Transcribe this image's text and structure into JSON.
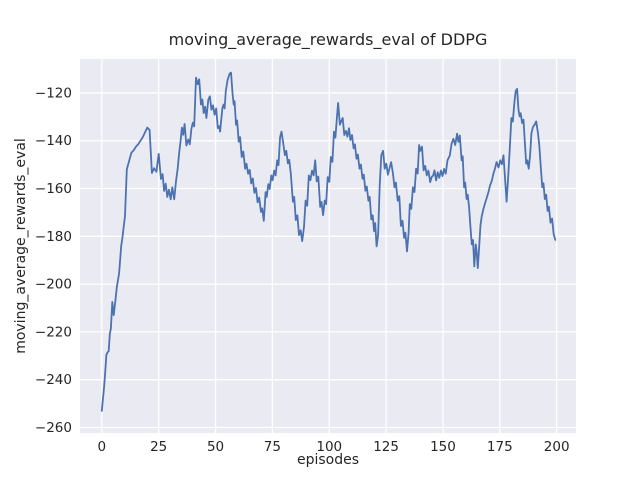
{
  "chart_data": {
    "type": "line",
    "title": "moving_average_rewards_eval of DDPG",
    "xlabel": "episodes",
    "ylabel": "moving_average_rewards_eval",
    "x_ticks": [
      0,
      25,
      50,
      75,
      100,
      125,
      150,
      175,
      200
    ],
    "y_ticks": [
      -260,
      -240,
      -220,
      -200,
      -180,
      -160,
      -140,
      -120
    ],
    "xlim": [
      -9.6,
      208.5
    ],
    "ylim": [
      -262.3,
      -105.8
    ],
    "grid": true,
    "legend": false,
    "style": "seaborn-darkgrid",
    "colors": {
      "line": "#4C72B0",
      "plot_background": "#EAEAF2",
      "gridline": "#FFFFFF",
      "text": "#262626",
      "figure_background": "#FFFFFF"
    },
    "series": [
      {
        "name": "moving_average_rewards_eval",
        "points": [
          [
            0,
            -253
          ],
          [
            1,
            -243
          ],
          [
            1.5,
            -237
          ],
          [
            2,
            -229.5
          ],
          [
            2.6,
            -228.5
          ],
          [
            3,
            -228
          ],
          [
            3.5,
            -221
          ],
          [
            4,
            -218.5
          ],
          [
            4.6,
            -207.5
          ],
          [
            5.2,
            -213
          ],
          [
            6,
            -206.5
          ],
          [
            6.6,
            -201.3
          ],
          [
            7.6,
            -195.5
          ],
          [
            8.5,
            -184
          ],
          [
            9,
            -181
          ],
          [
            9.6,
            -176
          ],
          [
            10.2,
            -171.5
          ],
          [
            11,
            -152
          ],
          [
            12,
            -148.5
          ],
          [
            13,
            -145
          ],
          [
            14,
            -144
          ],
          [
            15,
            -142.5
          ],
          [
            16,
            -141.5
          ],
          [
            17,
            -140
          ],
          [
            18,
            -138.5
          ],
          [
            19,
            -136.5
          ],
          [
            20,
            -134.5
          ],
          [
            21,
            -135.5
          ],
          [
            22,
            -153.5
          ],
          [
            23,
            -151.5
          ],
          [
            24,
            -153
          ],
          [
            25,
            -145.5
          ],
          [
            26,
            -156
          ],
          [
            26.7,
            -154
          ],
          [
            27.4,
            -161
          ],
          [
            28.1,
            -158
          ],
          [
            28.8,
            -163.5
          ],
          [
            29.5,
            -160.5
          ],
          [
            30.3,
            -164.5
          ],
          [
            31,
            -159.5
          ],
          [
            31.8,
            -164.5
          ],
          [
            32.6,
            -157
          ],
          [
            33.3,
            -152
          ],
          [
            34,
            -145
          ],
          [
            34.6,
            -140.5
          ],
          [
            35.2,
            -134.5
          ],
          [
            35.8,
            -137.5
          ],
          [
            36.4,
            -133
          ],
          [
            37.2,
            -142
          ],
          [
            38,
            -139.5
          ],
          [
            38.7,
            -141.5
          ],
          [
            39.4,
            -135
          ],
          [
            40,
            -132.5
          ],
          [
            40.6,
            -134
          ],
          [
            41.4,
            -113.6
          ],
          [
            42.1,
            -116.4
          ],
          [
            42.8,
            -114.3
          ],
          [
            43.6,
            -124.9
          ],
          [
            44.2,
            -122.8
          ],
          [
            44.8,
            -128.4
          ],
          [
            45.4,
            -125.8
          ],
          [
            46,
            -130.5
          ],
          [
            46.8,
            -122.8
          ],
          [
            47.5,
            -121.4
          ],
          [
            48.2,
            -127
          ],
          [
            48.9,
            -125.2
          ],
          [
            49.6,
            -129.1
          ],
          [
            50.3,
            -126.5
          ],
          [
            51,
            -134.7
          ],
          [
            51.5,
            -133.9
          ],
          [
            52,
            -136.2
          ],
          [
            53,
            -126.3
          ],
          [
            53.5,
            -124.9
          ],
          [
            54,
            -126.5
          ],
          [
            54.5,
            -119.2
          ],
          [
            55.3,
            -114.5
          ],
          [
            56.2,
            -112
          ],
          [
            56.8,
            -111.5
          ],
          [
            57.5,
            -120.5
          ],
          [
            58,
            -124.9
          ],
          [
            58.4,
            -123.5
          ],
          [
            59,
            -133.3
          ],
          [
            59.5,
            -131.5
          ],
          [
            60.2,
            -140.4
          ],
          [
            60.8,
            -138.5
          ],
          [
            61.5,
            -146.8
          ],
          [
            62.2,
            -144.5
          ],
          [
            63,
            -151.7
          ],
          [
            63.6,
            -149.6
          ],
          [
            64.3,
            -153.8
          ],
          [
            65,
            -152.2
          ],
          [
            65.7,
            -157.8
          ],
          [
            66.4,
            -155.8
          ],
          [
            67.1,
            -161.8
          ],
          [
            67.8,
            -159.8
          ],
          [
            68.5,
            -165.8
          ],
          [
            69.2,
            -163.8
          ],
          [
            70,
            -169.8
          ],
          [
            70.5,
            -168.3
          ],
          [
            71.2,
            -173.5
          ],
          [
            72,
            -161.5
          ],
          [
            72.5,
            -163.5
          ],
          [
            73.2,
            -158.2
          ],
          [
            73.8,
            -160.2
          ],
          [
            74.5,
            -154.5
          ],
          [
            75.1,
            -156.5
          ],
          [
            75.8,
            -152.5
          ],
          [
            76.4,
            -154.5
          ],
          [
            77.1,
            -148.2
          ],
          [
            77.7,
            -150.2
          ],
          [
            78.4,
            -138.5
          ],
          [
            79,
            -136.2
          ],
          [
            79.8,
            -141.2
          ],
          [
            80.5,
            -146
          ],
          [
            81.1,
            -144.2
          ],
          [
            81.8,
            -149.5
          ],
          [
            82.4,
            -148
          ],
          [
            83.1,
            -153.7
          ],
          [
            84,
            -165.5
          ],
          [
            84.6,
            -163.5
          ],
          [
            85.3,
            -173.2
          ],
          [
            86,
            -171.2
          ],
          [
            86.7,
            -179.5
          ],
          [
            87.4,
            -177.5
          ],
          [
            88.1,
            -182
          ],
          [
            88.9,
            -176
          ],
          [
            89.6,
            -165
          ],
          [
            90.3,
            -167.2
          ],
          [
            91,
            -154.5
          ],
          [
            91.7,
            -156.5
          ],
          [
            92.4,
            -152.5
          ],
          [
            93.1,
            -154.5
          ],
          [
            93.8,
            -148.2
          ],
          [
            94.5,
            -157
          ],
          [
            95.2,
            -155
          ],
          [
            96,
            -167.7
          ],
          [
            96.6,
            -165.6
          ],
          [
            97.3,
            -171.1
          ],
          [
            98,
            -165
          ],
          [
            98.6,
            -166.5
          ],
          [
            99.3,
            -155.2
          ],
          [
            100,
            -157.2
          ],
          [
            100.7,
            -146.8
          ],
          [
            101.4,
            -148.8
          ],
          [
            102.1,
            -136.2
          ],
          [
            102.7,
            -138.7
          ],
          [
            103.3,
            -131
          ],
          [
            103.9,
            -124.2
          ],
          [
            104.7,
            -133.3
          ],
          [
            105.3,
            -131.8
          ],
          [
            105.9,
            -130.5
          ],
          [
            106.6,
            -137.6
          ],
          [
            107.3,
            -135.9
          ],
          [
            108,
            -138.3
          ],
          [
            108.7,
            -134.8
          ],
          [
            109.3,
            -139.7
          ],
          [
            110,
            -137.6
          ],
          [
            110.7,
            -143.2
          ],
          [
            111.3,
            -141.5
          ],
          [
            112,
            -147.5
          ],
          [
            112.6,
            -145.8
          ],
          [
            113.3,
            -151.7
          ],
          [
            113.9,
            -150
          ],
          [
            114.6,
            -155.9
          ],
          [
            115.2,
            -154.2
          ],
          [
            115.9,
            -160.9
          ],
          [
            116.5,
            -159.2
          ],
          [
            117.2,
            -165.1
          ],
          [
            117.8,
            -163.5
          ],
          [
            118.5,
            -172.9
          ],
          [
            119.1,
            -171.2
          ],
          [
            119.7,
            -177.8
          ],
          [
            120.2,
            -174.5
          ],
          [
            120.8,
            -184.2
          ],
          [
            121.5,
            -179.5
          ],
          [
            122.2,
            -158.8
          ],
          [
            122.9,
            -146.1
          ],
          [
            123.7,
            -144.2
          ],
          [
            124.4,
            -151.7
          ],
          [
            125.1,
            -149.6
          ],
          [
            125.8,
            -154.2
          ],
          [
            126.5,
            -151.5
          ],
          [
            127.2,
            -149
          ],
          [
            128,
            -153.5
          ],
          [
            128.7,
            -159.5
          ],
          [
            129.3,
            -157.5
          ],
          [
            130.1,
            -165.1
          ],
          [
            130.8,
            -163.2
          ],
          [
            131.5,
            -175.7
          ],
          [
            132.2,
            -173.5
          ],
          [
            132.9,
            -180.6
          ],
          [
            133.5,
            -178.5
          ],
          [
            134.2,
            -186.3
          ],
          [
            134.9,
            -178.5
          ],
          [
            135.4,
            -166.5
          ],
          [
            136.1,
            -168.5
          ],
          [
            136.8,
            -159.5
          ],
          [
            137.5,
            -161.5
          ],
          [
            138.2,
            -151.7
          ],
          [
            138.9,
            -153.7
          ],
          [
            139.5,
            -141.8
          ],
          [
            140.1,
            -144.2
          ],
          [
            140.8,
            -142.5
          ],
          [
            141.5,
            -152.4
          ],
          [
            142.2,
            -150.5
          ],
          [
            142.9,
            -154.5
          ],
          [
            143.6,
            -152.5
          ],
          [
            144.4,
            -157.3
          ],
          [
            145,
            -155.2
          ],
          [
            145.7,
            -154.5
          ],
          [
            146.3,
            -152.4
          ],
          [
            147,
            -156.6
          ],
          [
            147.7,
            -153.2
          ],
          [
            148.4,
            -155.5
          ],
          [
            149.1,
            -152.5
          ],
          [
            149.8,
            -154.8
          ],
          [
            150.5,
            -151.8
          ],
          [
            151.2,
            -153.8
          ],
          [
            152,
            -148.2
          ],
          [
            153,
            -146.2
          ],
          [
            153.8,
            -141.2
          ],
          [
            154.6,
            -139.2
          ],
          [
            155.4,
            -141.8
          ],
          [
            156.2,
            -137
          ],
          [
            156.8,
            -140.5
          ],
          [
            157.4,
            -137.8
          ],
          [
            158.2,
            -148.2
          ],
          [
            158.7,
            -146.5
          ],
          [
            159.3,
            -159.5
          ],
          [
            159.8,
            -157.5
          ],
          [
            160.4,
            -164.4
          ],
          [
            160.9,
            -162.6
          ],
          [
            161.5,
            -167.9
          ],
          [
            162.1,
            -176.4
          ],
          [
            162.7,
            -183.4
          ],
          [
            163.2,
            -181.6
          ],
          [
            163.8,
            -192.6
          ],
          [
            164.4,
            -183.4
          ],
          [
            164.8,
            -186.2
          ],
          [
            165.3,
            -193.3
          ],
          [
            166,
            -183.5
          ],
          [
            166.5,
            -175.2
          ],
          [
            167.1,
            -171.5
          ],
          [
            167.8,
            -168.6
          ],
          [
            168.6,
            -165.8
          ],
          [
            169.3,
            -163.7
          ],
          [
            170,
            -161.6
          ],
          [
            170.7,
            -158.8
          ],
          [
            171.5,
            -156.6
          ],
          [
            172.2,
            -153.8
          ],
          [
            172.9,
            -151.6
          ],
          [
            173.6,
            -148.9
          ],
          [
            174.4,
            -151.2
          ],
          [
            175.2,
            -148.2
          ],
          [
            175.9,
            -149.8
          ],
          [
            176.6,
            -146.1
          ],
          [
            177.4,
            -157.5
          ],
          [
            178,
            -165.5
          ],
          [
            178.7,
            -155
          ],
          [
            179.4,
            -143
          ],
          [
            180.1,
            -130.5
          ],
          [
            180.7,
            -132
          ],
          [
            181.4,
            -124
          ],
          [
            182,
            -119.2
          ],
          [
            182.6,
            -118.3
          ],
          [
            183.2,
            -127
          ],
          [
            183.7,
            -129.8
          ],
          [
            184.2,
            -128.5
          ],
          [
            184.8,
            -132.6
          ],
          [
            185.4,
            -131.2
          ],
          [
            186,
            -140.4
          ],
          [
            186.6,
            -149.6
          ],
          [
            187.1,
            -148.2
          ],
          [
            187.7,
            -151.7
          ],
          [
            188.3,
            -146.2
          ],
          [
            188.9,
            -136.9
          ],
          [
            189.6,
            -134.2
          ],
          [
            190.3,
            -133.3
          ],
          [
            191,
            -131.9
          ],
          [
            191.8,
            -136.9
          ],
          [
            192.4,
            -142.5
          ],
          [
            193,
            -151.2
          ],
          [
            193.7,
            -159.5
          ],
          [
            194.2,
            -157.8
          ],
          [
            194.8,
            -164.4
          ],
          [
            195.4,
            -162.6
          ],
          [
            196,
            -169.3
          ],
          [
            196.6,
            -167.6
          ],
          [
            197.3,
            -174.3
          ],
          [
            198,
            -172.6
          ],
          [
            198.7,
            -179.2
          ],
          [
            199.4,
            -181.5
          ]
        ]
      }
    ]
  }
}
